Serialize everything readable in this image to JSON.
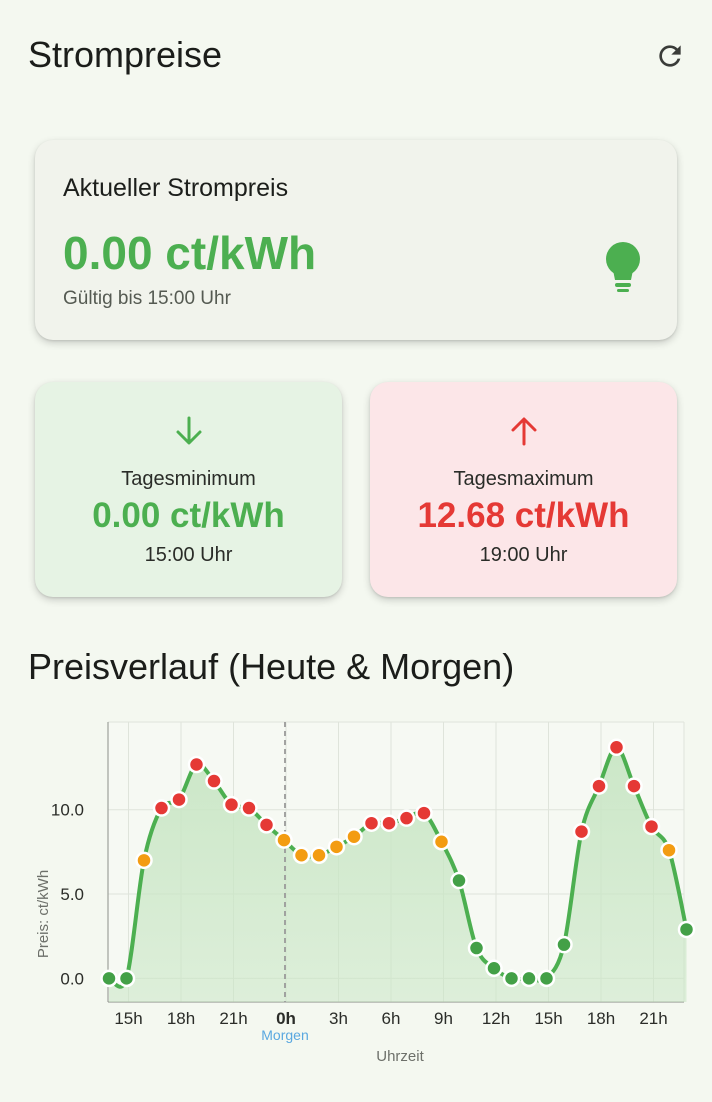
{
  "app": {
    "title": "Strompreise",
    "refresh_icon": "refresh-icon"
  },
  "current": {
    "label": "Aktueller Strompreis",
    "price": "0.00 ct/kWh",
    "valid": "Gültig bis 15:00 Uhr",
    "icon": "lightbulb-icon",
    "color": "#4caf50"
  },
  "min": {
    "title": "Tagesminimum",
    "value": "0.00 ct/kWh",
    "time": "15:00 Uhr",
    "icon": "arrow-down-icon",
    "color": "#4caf50"
  },
  "max": {
    "title": "Tagesmaximum",
    "value": "12.68 ct/kWh",
    "time": "19:00 Uhr",
    "icon": "arrow-up-icon",
    "color": "#e53935"
  },
  "section": {
    "title": "Preisverlauf (Heute & Morgen)"
  },
  "chart_data": {
    "type": "area",
    "xlabel": "Uhrzeit",
    "ylabel": "Preis: ct/kWh",
    "ylim": [
      -1.4,
      15.2
    ],
    "yticks": [
      "0.0",
      "5.0",
      "10.0"
    ],
    "ytick_values": [
      0,
      5,
      10
    ],
    "x_tick_labels": [
      "15h",
      "18h",
      "21h",
      "0h",
      "3h",
      "6h",
      "9h",
      "12h",
      "15h",
      "18h",
      "21h"
    ],
    "x_tick_hours": [
      1,
      4,
      7,
      10,
      13,
      16,
      19,
      22,
      25,
      28,
      31
    ],
    "divider": {
      "hour": 10,
      "label": "Morgen"
    },
    "grid": true,
    "colors": {
      "line": "#4caf50",
      "fill": "#c9e6c5",
      "low": "#43a047",
      "mid": "#f39c12",
      "high": "#e53935"
    },
    "points": [
      {
        "h": 0,
        "v": 0.0,
        "c": "low"
      },
      {
        "h": 1,
        "v": 0.0,
        "c": "low"
      },
      {
        "h": 2,
        "v": 7.0,
        "c": "mid"
      },
      {
        "h": 3,
        "v": 10.1,
        "c": "high"
      },
      {
        "h": 4,
        "v": 10.6,
        "c": "high"
      },
      {
        "h": 5,
        "v": 12.68,
        "c": "high"
      },
      {
        "h": 6,
        "v": 11.7,
        "c": "high"
      },
      {
        "h": 7,
        "v": 10.3,
        "c": "high"
      },
      {
        "h": 8,
        "v": 10.1,
        "c": "high"
      },
      {
        "h": 9,
        "v": 9.1,
        "c": "high"
      },
      {
        "h": 10,
        "v": 8.2,
        "c": "mid"
      },
      {
        "h": 11,
        "v": 7.3,
        "c": "mid"
      },
      {
        "h": 12,
        "v": 7.3,
        "c": "mid"
      },
      {
        "h": 13,
        "v": 7.8,
        "c": "mid"
      },
      {
        "h": 14,
        "v": 8.4,
        "c": "mid"
      },
      {
        "h": 15,
        "v": 9.2,
        "c": "high"
      },
      {
        "h": 16,
        "v": 9.2,
        "c": "high"
      },
      {
        "h": 17,
        "v": 9.5,
        "c": "high"
      },
      {
        "h": 18,
        "v": 9.8,
        "c": "high"
      },
      {
        "h": 19,
        "v": 8.1,
        "c": "mid"
      },
      {
        "h": 20,
        "v": 5.8,
        "c": "low"
      },
      {
        "h": 21,
        "v": 1.8,
        "c": "low"
      },
      {
        "h": 22,
        "v": 0.6,
        "c": "low"
      },
      {
        "h": 23,
        "v": 0.0,
        "c": "low"
      },
      {
        "h": 24,
        "v": 0.0,
        "c": "low"
      },
      {
        "h": 25,
        "v": 0.0,
        "c": "low"
      },
      {
        "h": 26,
        "v": 2.0,
        "c": "low"
      },
      {
        "h": 27,
        "v": 8.7,
        "c": "high"
      },
      {
        "h": 28,
        "v": 11.4,
        "c": "high"
      },
      {
        "h": 29,
        "v": 13.7,
        "c": "high"
      },
      {
        "h": 30,
        "v": 11.4,
        "c": "high"
      },
      {
        "h": 31,
        "v": 9.0,
        "c": "high"
      },
      {
        "h": 32,
        "v": 7.6,
        "c": "mid"
      },
      {
        "h": 33,
        "v": 2.9,
        "c": "low"
      }
    ]
  }
}
